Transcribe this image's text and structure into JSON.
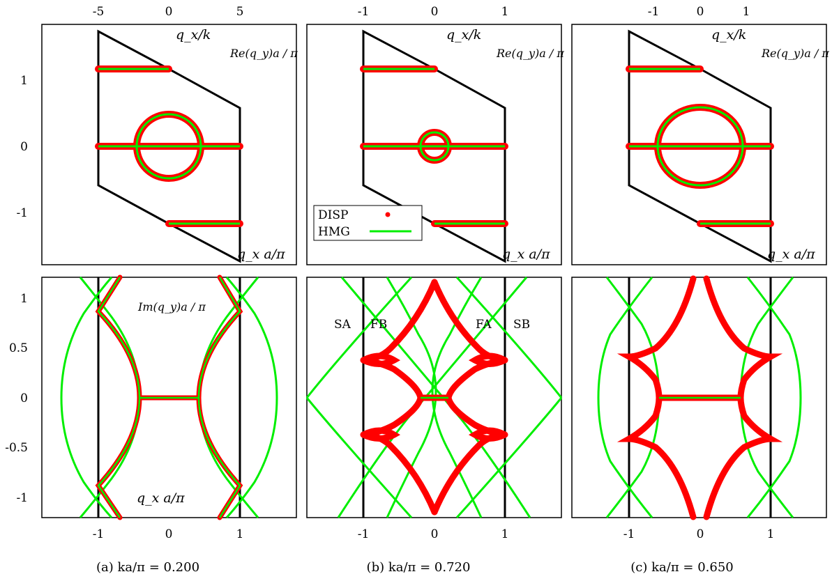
{
  "figure": {
    "captions": [
      "(a) ka/π = 0.200",
      "(b) ka/π = 0.720",
      "(c) ka/π = 0.650"
    ],
    "legend": {
      "entries": [
        {
          "name": "DISP",
          "color": "#ff0000",
          "marker": "point"
        },
        {
          "name": "HMG",
          "color": "#00ee00",
          "marker": "line"
        }
      ]
    }
  },
  "colors": {
    "disp": "#ff0000",
    "hmg": "#00ee00",
    "frame": "#000000"
  },
  "chart_data": [
    {
      "panel": "a-top",
      "type": "line",
      "ylabel_left": "",
      "ylabel_inside": "Re(q_y)a / π",
      "xlabel_inside": "q_x a/π",
      "top_axis_label": "q_x/k",
      "top_ticks": [
        "-5",
        "0",
        "5"
      ],
      "y_ticks": [
        "1",
        "0",
        "-1"
      ],
      "ylim": [
        -1.75,
        1.75
      ],
      "xlim": [
        -1,
        1
      ],
      "zone_boundary": [
        [
          -1,
          1.73
        ],
        [
          -1,
          -0.58
        ],
        [
          0,
          -1.15
        ],
        [
          1,
          -1.73
        ],
        [
          1,
          0.58
        ],
        [
          0,
          1.15
        ],
        [
          -1,
          1.73
        ]
      ],
      "series": [
        {
          "name": "DISP",
          "segments": [
            [
              [
                -1,
                1.15
              ],
              [
                0,
                1.15
              ]
            ],
            [
              [
                -1,
                0
              ],
              [
                1,
                0
              ]
            ],
            [
              [
                0,
                -1.15
              ],
              [
                1,
                -1.15
              ]
            ]
          ],
          "circle_radius_qx": 0.47
        },
        {
          "name": "HMG",
          "segments": [
            [
              [
                -1,
                1.15
              ],
              [
                0,
                1.15
              ]
            ],
            [
              [
                -1,
                0
              ],
              [
                1,
                0
              ]
            ],
            [
              [
                0,
                -1.15
              ],
              [
                1,
                -1.15
              ]
            ]
          ],
          "circle_radius_qx": 0.47
        }
      ]
    },
    {
      "panel": "b-top",
      "type": "line",
      "ylabel_inside": "Re(q_y)a / π",
      "xlabel_inside": "q_x a/π",
      "top_axis_label": "q_x/k",
      "top_ticks": [
        "-1",
        "0",
        "1"
      ],
      "y_ticks": [
        "1",
        "0",
        "-1"
      ],
      "ylim": [
        -1.75,
        1.75
      ],
      "xlim": [
        -1,
        1
      ],
      "series": [
        {
          "name": "DISP",
          "segments": [
            [
              [
                -1,
                1.15
              ],
              [
                0,
                1.15
              ]
            ],
            [
              [
                -1,
                0
              ],
              [
                1,
                0
              ]
            ],
            [
              [
                0,
                -1.15
              ],
              [
                1,
                -1.15
              ]
            ]
          ],
          "circle_radius_qx": 0.2
        },
        {
          "name": "HMG",
          "segments": [
            [
              [
                -1,
                1.15
              ],
              [
                0,
                1.15
              ]
            ],
            [
              [
                -1,
                0
              ],
              [
                1,
                0
              ]
            ],
            [
              [
                0,
                -1.15
              ],
              [
                1,
                -1.15
              ]
            ]
          ],
          "circle_radius_qx": 0.2
        }
      ]
    },
    {
      "panel": "c-top",
      "type": "line",
      "ylabel_inside": "Re(q_y)a / π",
      "xlabel_inside": "q_x a/π",
      "top_axis_label": "q_x/k",
      "top_ticks": [
        "-1",
        "0",
        "1"
      ],
      "y_ticks": [
        "1",
        "0",
        "-1"
      ],
      "ylim": [
        -1.75,
        1.75
      ],
      "xlim": [
        -1,
        1
      ],
      "series": [
        {
          "name": "DISP",
          "segments": [
            [
              [
                -1,
                1.15
              ],
              [
                0,
                1.15
              ]
            ],
            [
              [
                -1,
                0
              ],
              [
                1,
                0
              ]
            ],
            [
              [
                0,
                -1.15
              ],
              [
                1,
                -1.15
              ]
            ]
          ],
          "circle_radius_qx": 0.6
        },
        {
          "name": "HMG",
          "segments": [
            [
              [
                -1,
                1.15
              ],
              [
                0,
                1.15
              ]
            ],
            [
              [
                -1,
                0
              ],
              [
                1,
                0
              ]
            ],
            [
              [
                0,
                -1.15
              ],
              [
                1,
                -1.15
              ]
            ]
          ],
          "circle_radius_qx": 0.6
        }
      ]
    },
    {
      "panel": "a-bottom",
      "type": "line",
      "ylabel_inside": "Im(q_y)a / π",
      "xlabel_inside": "q_x a/π",
      "x_ticks": [
        "-1",
        "0",
        "1"
      ],
      "xlim": [
        -1.95,
        1.95
      ],
      "y_ticks": [
        "1",
        "0.5",
        "0",
        "-0.5",
        "-1"
      ],
      "ylim": [
        -1.2,
        1.2
      ],
      "vertical_lines": [
        -1,
        1
      ],
      "series": [
        {
          "name": "DISP",
          "flat_segment": [
            [
              -0.43,
              0
            ],
            [
              0.43,
              0
            ]
          ],
          "outer_cusp_x": 0.68
        },
        {
          "name": "HMG",
          "flat_segment": [
            [
              -0.43,
              0
            ],
            [
              0.43,
              0
            ]
          ],
          "crossing_y": [
            0.88,
            -0.88
          ],
          "outer_x_at_y0": 1.55
        }
      ]
    },
    {
      "panel": "b-bottom",
      "type": "line",
      "annotations": [
        "SA",
        "FB",
        "FA",
        "SB"
      ],
      "x_ticks": [
        "-1",
        "0",
        "1"
      ],
      "xlim": [
        -1.8,
        1.8
      ],
      "y_ticks": [
        "1",
        "0.5",
        "0",
        "-0.5",
        "-1"
      ],
      "ylim": [
        -1.2,
        1.2
      ],
      "vertical_lines": [
        -1,
        1
      ],
      "series": [
        {
          "name": "DISP",
          "peak_y": 1.15,
          "loop_y": 0.38,
          "flat_segment": [
            [
              -0.22,
              0
            ],
            [
              0.22,
              0
            ]
          ]
        },
        {
          "name": "HMG",
          "crossing_y": [
            0.97,
            -0.97
          ],
          "outer_x_at_y0": 1.8
        }
      ]
    },
    {
      "panel": "c-bottom",
      "type": "line",
      "x_ticks": [
        "-1",
        "0",
        "1"
      ],
      "xlim": [
        -1.95,
        1.95
      ],
      "y_ticks": [
        "1",
        "0.5",
        "0",
        "-0.5",
        "-1"
      ],
      "ylim": [
        -1.2,
        1.2
      ],
      "vertical_lines": [
        -1,
        1
      ],
      "series": [
        {
          "name": "DISP",
          "top_x": [
            -0.1,
            0.07
          ],
          "loop_y": 0.41,
          "flat_segment": [
            [
              -0.55,
              0
            ],
            [
              0.55,
              0
            ]
          ]
        },
        {
          "name": "HMG",
          "crossing_y": [
            0.83,
            -0.83
          ],
          "outer_x_at_y0": 1.55
        }
      ]
    }
  ]
}
